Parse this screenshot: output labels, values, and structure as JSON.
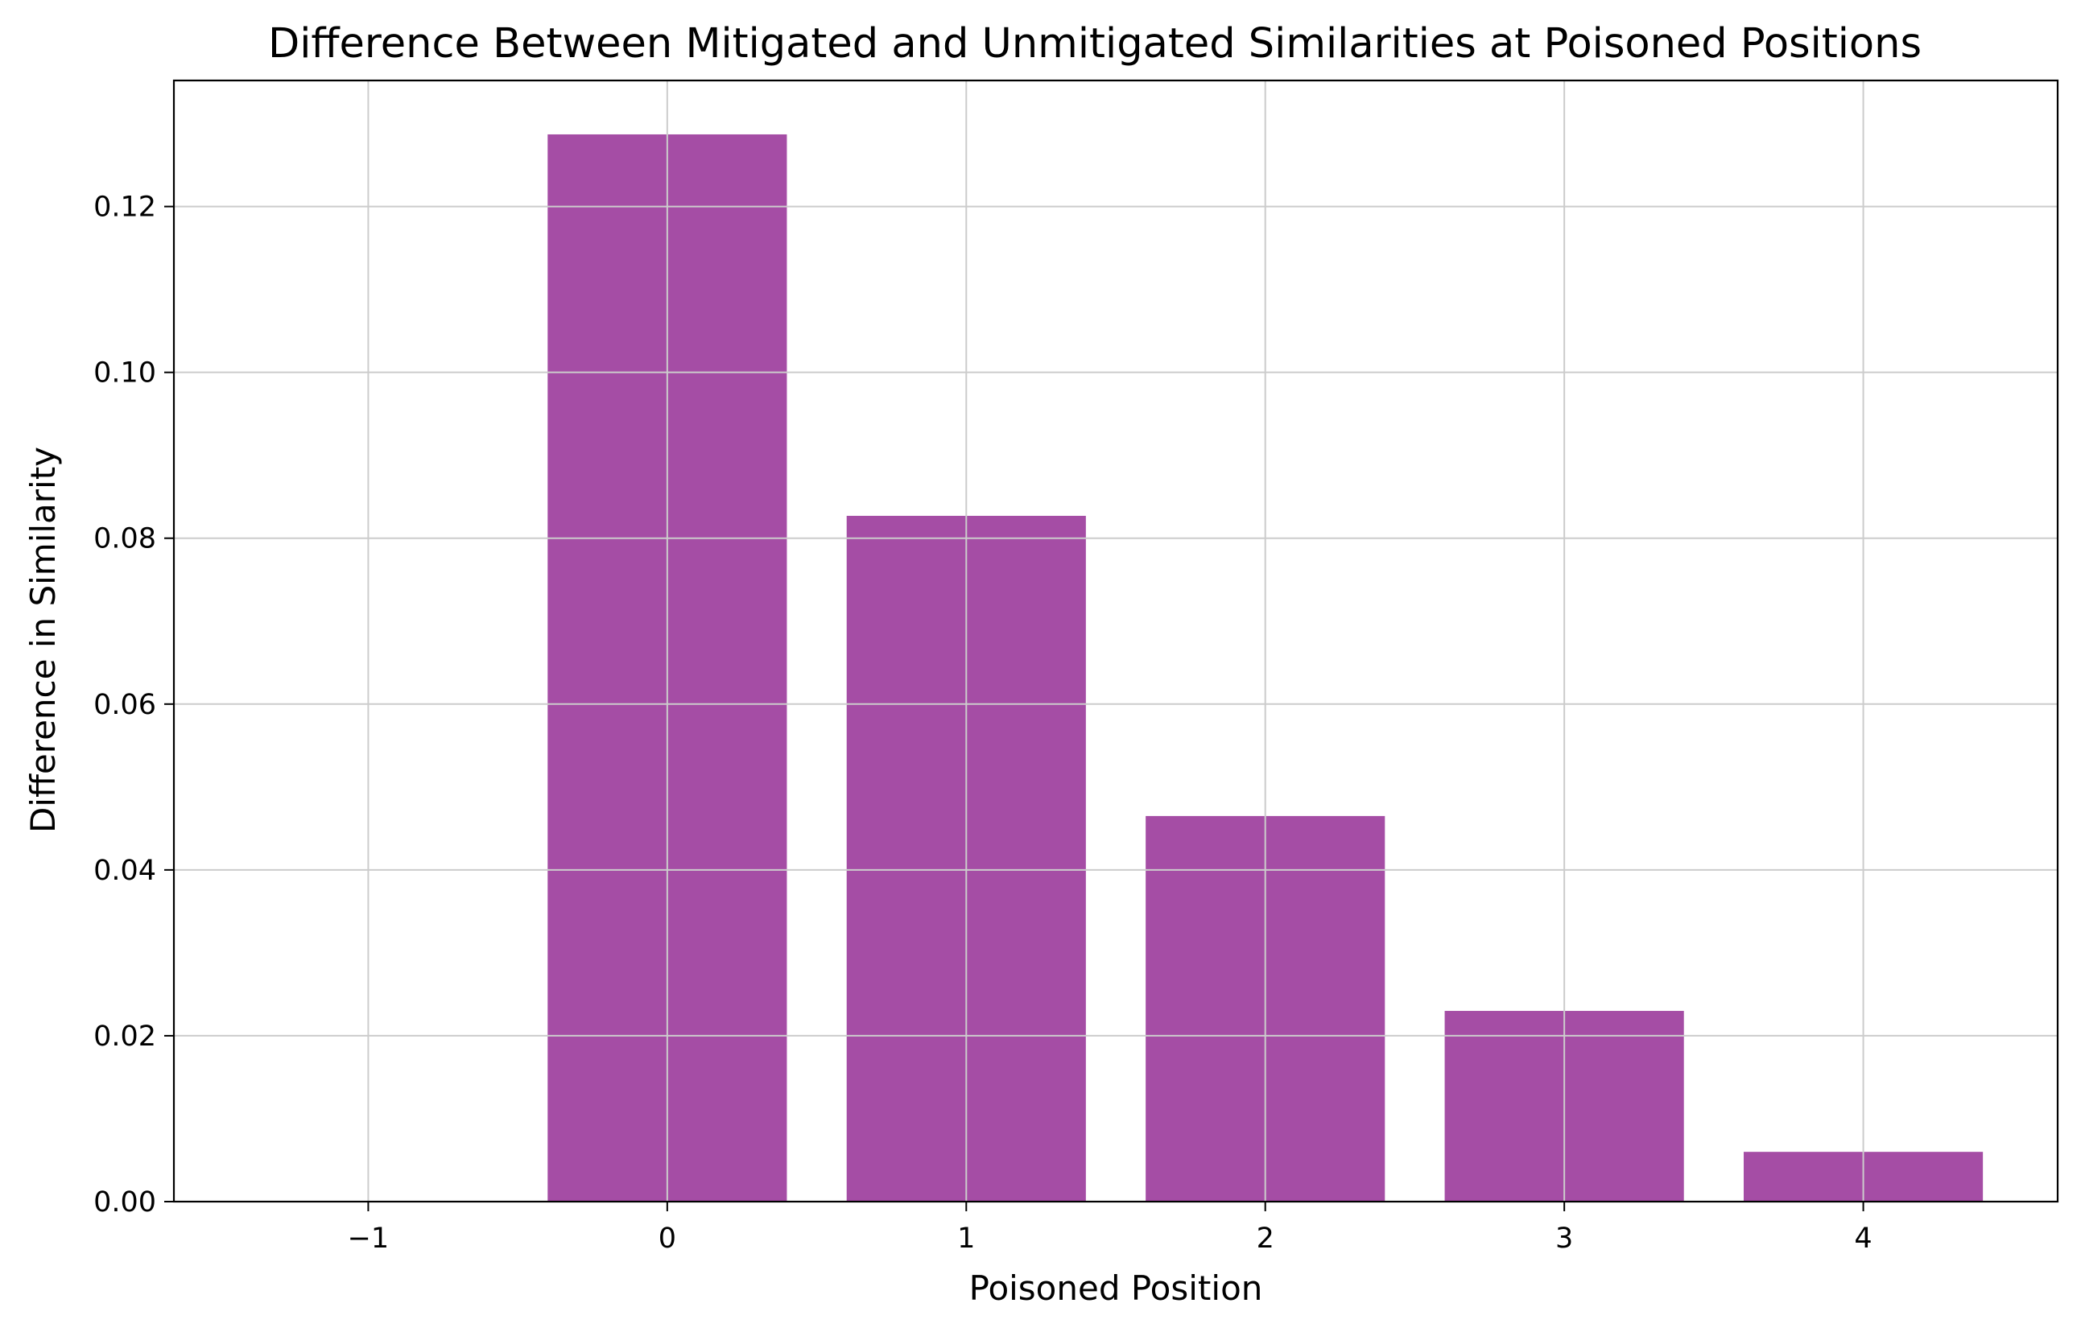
{
  "chart_data": {
    "type": "bar",
    "title": "Difference Between Mitigated and Unmitigated Similarities at Poisoned Positions",
    "xlabel": "Poisoned Position",
    "ylabel": "Difference in Similarity",
    "categories": [
      0,
      1,
      2,
      3,
      4
    ],
    "values": [
      0.1287,
      0.0827,
      0.0465,
      0.023,
      0.006
    ],
    "xlim": [
      -1.65,
      4.65
    ],
    "ylim": [
      0,
      0.1352
    ],
    "x_ticks": [
      -1,
      0,
      1,
      2,
      3,
      4
    ],
    "x_tick_labels": [
      "−1",
      "0",
      "1",
      "2",
      "3",
      "4"
    ],
    "y_ticks": [
      0,
      0.02,
      0.04,
      0.06,
      0.08,
      0.1,
      0.12
    ],
    "y_tick_labels": [
      "0.00",
      "0.02",
      "0.04",
      "0.06",
      "0.08",
      "0.10",
      "0.12"
    ],
    "bar_width": 0.8,
    "bar_color": "#a54da5",
    "grid": true,
    "grid_color": "#cccccc",
    "legend": null
  }
}
